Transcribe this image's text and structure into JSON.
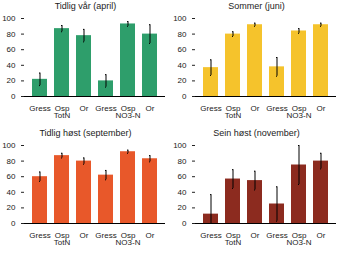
{
  "chart_data": [
    {
      "type": "bar",
      "title": "Tidlig vår (april)",
      "color": "#2e9e6b",
      "categories": [
        "Gress",
        "Osp",
        "Or",
        "Gress",
        "Osp",
        "Or"
      ],
      "category_groups": [
        "TotN",
        "TotN",
        "TotN",
        "NO3-N",
        "NO3-N",
        "NO3-N"
      ],
      "values": [
        22,
        87,
        78,
        20,
        93,
        80
      ],
      "errors": [
        8,
        4,
        8,
        8,
        3,
        12
      ],
      "ylim": [
        0,
        100
      ],
      "yticks": [
        0,
        20,
        40,
        60,
        80,
        100
      ],
      "grid": false
    },
    {
      "type": "bar",
      "title": "Sommer (juni)",
      "color": "#f5c32c",
      "categories": [
        "Gress",
        "Osp",
        "Or",
        "Gress",
        "Osp",
        "Or"
      ],
      "category_groups": [
        "TotN",
        "TotN",
        "TotN",
        "NO3-N",
        "NO3-N",
        "NO3-N"
      ],
      "values": [
        37,
        80,
        92,
        38,
        84,
        92
      ],
      "errors": [
        10,
        3,
        2,
        12,
        3,
        2
      ],
      "ylim": [
        0,
        100
      ],
      "yticks": [
        0,
        20,
        40,
        60,
        80,
        100
      ],
      "grid": false
    },
    {
      "type": "bar",
      "title": "Tidlig høst (september)",
      "color": "#e8582a",
      "categories": [
        "Gress",
        "Osp",
        "Or",
        "Gress",
        "Osp",
        "Or"
      ],
      "category_groups": [
        "TotN",
        "TotN",
        "TotN",
        "NO3-N",
        "NO3-N",
        "NO3-N"
      ],
      "values": [
        60,
        87,
        80,
        62,
        92,
        83
      ],
      "errors": [
        6,
        3,
        4,
        6,
        2,
        4
      ],
      "ylim": [
        0,
        100
      ],
      "yticks": [
        0,
        20,
        40,
        60,
        80,
        100
      ],
      "grid": false
    },
    {
      "type": "bar",
      "title": "Sein høst (november)",
      "color": "#8c2b1f",
      "categories": [
        "Gress",
        "Osp",
        "Or",
        "Gress",
        "Osp",
        "Or"
      ],
      "category_groups": [
        "TotN",
        "TotN",
        "TotN",
        "NO3-N",
        "NO3-N",
        "NO3-N"
      ],
      "values": [
        12,
        57,
        55,
        25,
        75,
        80
      ],
      "errors": [
        25,
        12,
        12,
        22,
        25,
        10
      ],
      "ylim": [
        0,
        100
      ],
      "yticks": [
        0,
        20,
        40,
        60,
        80,
        100
      ],
      "grid": false
    }
  ]
}
